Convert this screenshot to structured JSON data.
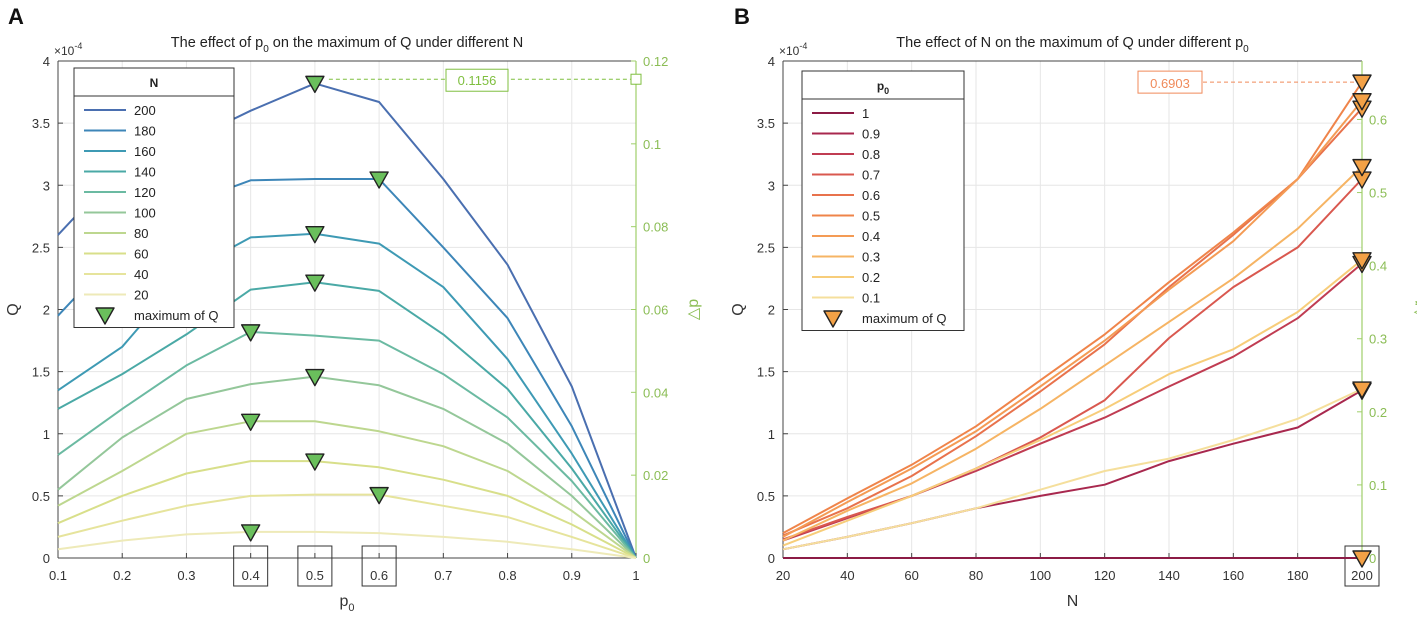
{
  "figure": {
    "panel_a_letter": "A",
    "panel_b_letter": "B"
  },
  "chart_data": [
    {
      "type": "line",
      "panel": "A",
      "title": "The effect of p0 on the maximum of Q under different N",
      "title_main": "The effect of p",
      "title_sub": "0",
      "title_rest": " on the maximum of Q under different N",
      "xlabel": "p",
      "xlabel_sub": "0",
      "ylabel": "Q",
      "y2label": "△p",
      "exponent_label": "×10",
      "exponent_power": "-4",
      "xlim": [
        0.1,
        1
      ],
      "ylim": [
        0,
        4
      ],
      "y2lim": [
        0,
        0.12
      ],
      "xticks": [
        "0.1",
        "0.2",
        "0.3",
        "0.4",
        "0.5",
        "0.6",
        "0.7",
        "0.8",
        "0.9",
        "1"
      ],
      "yticks": [
        "0",
        "0.5",
        "1",
        "1.5",
        "2",
        "2.5",
        "3",
        "3.5",
        "4"
      ],
      "y2ticks": [
        "0",
        "0.02",
        "0.04",
        "0.06",
        "0.08",
        "0.1",
        "0.12"
      ],
      "boxed_xticks": [
        "0.4",
        "0.5",
        "0.6"
      ],
      "legend_title": "N",
      "legend_marker_label": "maximum of Q",
      "annotation": {
        "text": "0.1156",
        "y2_value": 0.1156,
        "color": "#7fbf3f"
      },
      "marker_color": "#6abf5c",
      "x": [
        0.1,
        0.2,
        0.3,
        0.4,
        0.5,
        0.6,
        0.7,
        0.8,
        0.9,
        1.0
      ],
      "series": [
        {
          "name": "200",
          "color": "#4a6fb0",
          "values": [
            2.6,
            3.15,
            3.35,
            3.6,
            3.82,
            3.67,
            3.05,
            2.36,
            1.38,
            0
          ],
          "max_x": 0.5,
          "max_y": 3.82
        },
        {
          "name": "180",
          "color": "#3d86b8",
          "values": [
            1.95,
            2.5,
            2.85,
            3.04,
            3.05,
            3.05,
            2.5,
            1.93,
            1.06,
            0
          ],
          "max_x": 0.6,
          "max_y": 3.05
        },
        {
          "name": "160",
          "color": "#3e9ab4",
          "values": [
            1.35,
            1.7,
            2.3,
            2.58,
            2.61,
            2.53,
            2.18,
            1.6,
            0.84,
            0
          ],
          "max_x": 0.5,
          "max_y": 2.61
        },
        {
          "name": "140",
          "color": "#4aa9a6",
          "values": [
            1.2,
            1.48,
            1.8,
            2.16,
            2.22,
            2.15,
            1.8,
            1.36,
            0.72,
            0
          ],
          "max_x": 0.5,
          "max_y": 2.22
        },
        {
          "name": "120",
          "color": "#6bbaa2",
          "values": [
            0.83,
            1.2,
            1.55,
            1.82,
            1.79,
            1.75,
            1.48,
            1.13,
            0.62,
            0
          ],
          "max_x": 0.4,
          "max_y": 1.82
        },
        {
          "name": "100",
          "color": "#94c79a",
          "values": [
            0.55,
            0.97,
            1.28,
            1.4,
            1.46,
            1.39,
            1.2,
            0.92,
            0.5,
            0
          ],
          "max_x": 0.5,
          "max_y": 1.46
        },
        {
          "name": "80",
          "color": "#bdd78f",
          "values": [
            0.42,
            0.7,
            1.0,
            1.1,
            1.1,
            1.02,
            0.9,
            0.7,
            0.38,
            0
          ],
          "max_x": 0.4,
          "max_y": 1.1
        },
        {
          "name": "60",
          "color": "#d8df8a",
          "values": [
            0.28,
            0.5,
            0.68,
            0.78,
            0.78,
            0.73,
            0.63,
            0.5,
            0.27,
            0
          ],
          "max_x": 0.5,
          "max_y": 0.78
        },
        {
          "name": "40",
          "color": "#e6e49c",
          "values": [
            0.17,
            0.3,
            0.42,
            0.5,
            0.51,
            0.51,
            0.42,
            0.33,
            0.17,
            0
          ],
          "max_x": 0.6,
          "max_y": 0.51
        },
        {
          "name": "20",
          "color": "#eeeab8",
          "values": [
            0.07,
            0.14,
            0.19,
            0.21,
            0.21,
            0.2,
            0.17,
            0.13,
            0.07,
            0
          ],
          "max_x": 0.4,
          "max_y": 0.21
        }
      ]
    },
    {
      "type": "line",
      "panel": "B",
      "title": "The effect of N on the maximum of Q under different p0",
      "title_main": "The effect of N on the maximum of Q under different p",
      "title_sub": "0",
      "xlabel": "N",
      "ylabel": "Q",
      "y2label": "△r",
      "exponent_label": "×10",
      "exponent_power": "-4",
      "xlim": [
        20,
        200
      ],
      "ylim": [
        0,
        4
      ],
      "y2lim": [
        0,
        0.68
      ],
      "xticks": [
        "20",
        "40",
        "60",
        "80",
        "100",
        "120",
        "140",
        "160",
        "180",
        "200"
      ],
      "yticks": [
        "0",
        "0.5",
        "1",
        "1.5",
        "2",
        "2.5",
        "3",
        "3.5",
        "4"
      ],
      "y2ticks": [
        "0",
        "0.1",
        "0.2",
        "0.3",
        "0.4",
        "0.5",
        "0.6"
      ],
      "boxed_xticks": [
        "200"
      ],
      "legend_title": "p",
      "legend_title_sub": "0",
      "legend_marker_label": "maximum of Q",
      "annotation": {
        "text": "0.6903",
        "y_value": 3.83,
        "color": "#f08a5a"
      },
      "marker_color": "#f3a146",
      "x": [
        20,
        40,
        60,
        80,
        100,
        120,
        140,
        160,
        180,
        200
      ],
      "series": [
        {
          "name": "1",
          "color": "#8c1b45",
          "values": [
            0,
            0,
            0,
            0,
            0,
            0,
            0,
            0,
            0,
            0
          ],
          "max_y": 0
        },
        {
          "name": "0.9",
          "color": "#a8284e",
          "values": [
            0.07,
            0.17,
            0.28,
            0.4,
            0.5,
            0.59,
            0.78,
            0.92,
            1.05,
            1.35
          ],
          "max_y": 1.35
        },
        {
          "name": "0.8",
          "color": "#c03c52",
          "values": [
            0.14,
            0.32,
            0.5,
            0.7,
            0.92,
            1.13,
            1.38,
            1.62,
            1.93,
            2.37
          ],
          "max_y": 2.37
        },
        {
          "name": "0.7",
          "color": "#d9584f",
          "values": [
            0.15,
            0.33,
            0.5,
            0.72,
            0.97,
            1.27,
            1.77,
            2.18,
            2.5,
            3.05
          ],
          "max_y": 3.05
        },
        {
          "name": "0.6",
          "color": "#e8724c",
          "values": [
            0.18,
            0.4,
            0.66,
            0.98,
            1.34,
            1.72,
            2.18,
            2.6,
            3.05,
            3.62
          ],
          "max_y": 3.62
        },
        {
          "name": "0.5",
          "color": "#ef844a",
          "values": [
            0.2,
            0.48,
            0.75,
            1.06,
            1.43,
            1.8,
            2.22,
            2.62,
            3.05,
            3.83
          ],
          "max_y": 3.83
        },
        {
          "name": "0.4",
          "color": "#f49b55",
          "values": [
            0.17,
            0.45,
            0.72,
            1.02,
            1.38,
            1.75,
            2.16,
            2.55,
            3.05,
            3.68
          ],
          "max_y": 3.68
        },
        {
          "name": "0.3",
          "color": "#f6b464",
          "values": [
            0.14,
            0.38,
            0.6,
            0.88,
            1.2,
            1.55,
            1.9,
            2.25,
            2.65,
            3.15
          ],
          "max_y": 3.15
        },
        {
          "name": "0.2",
          "color": "#f7cd7a",
          "values": [
            0.1,
            0.3,
            0.5,
            0.72,
            0.95,
            1.2,
            1.48,
            1.68,
            1.98,
            2.4
          ],
          "max_y": 2.4
        },
        {
          "name": "0.1",
          "color": "#f5df9c",
          "values": [
            0.07,
            0.17,
            0.28,
            0.4,
            0.55,
            0.7,
            0.8,
            0.95,
            1.12,
            1.36
          ],
          "max_y": 1.36
        }
      ]
    }
  ]
}
